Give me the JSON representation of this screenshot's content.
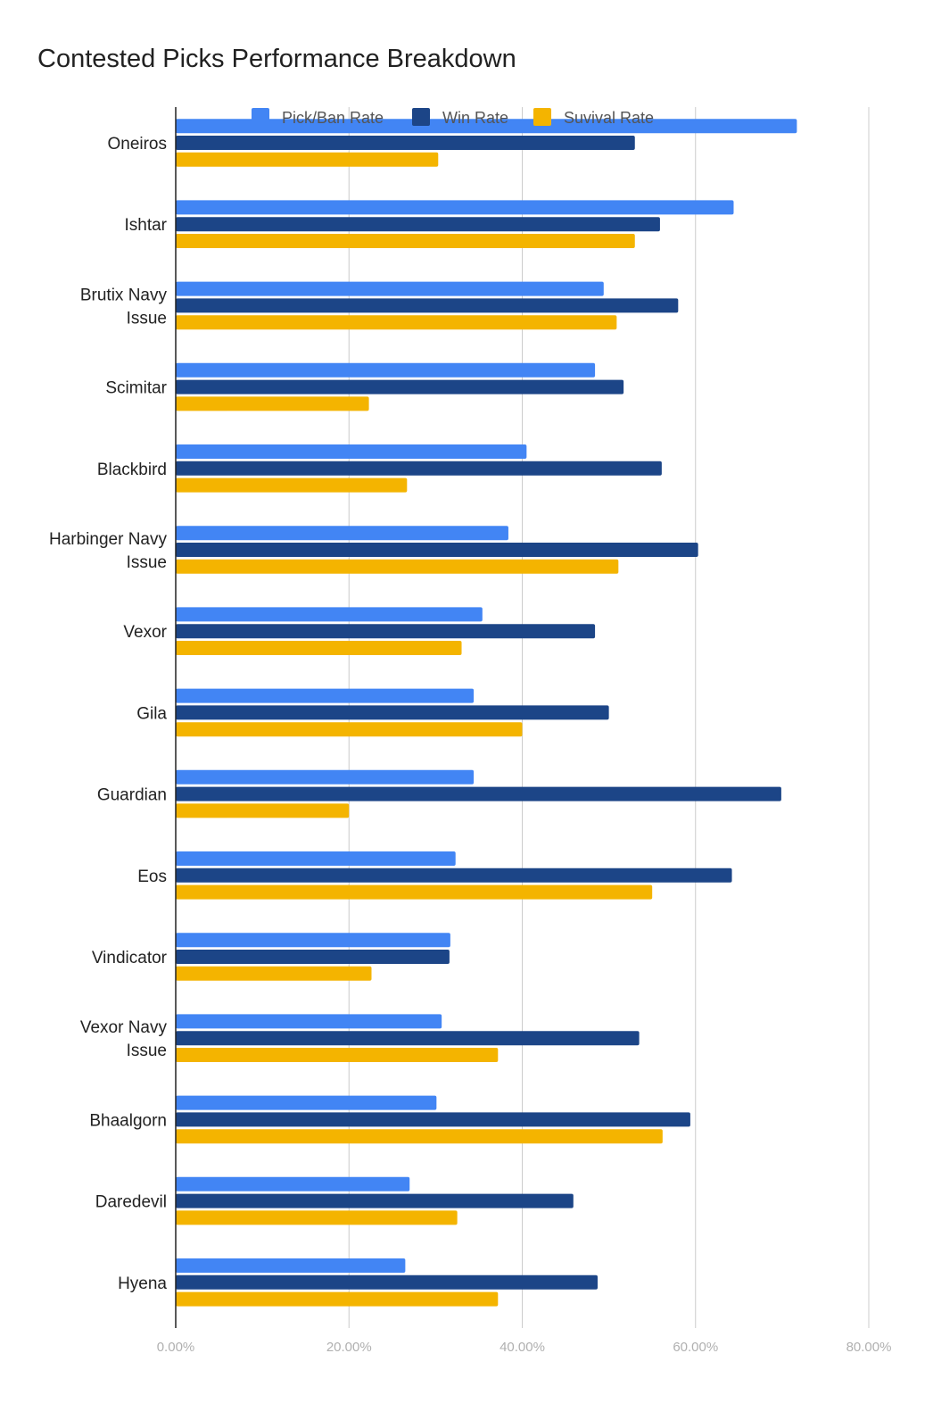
{
  "chart_data": {
    "type": "bar",
    "orientation": "horizontal",
    "title": "Contested Picks Performance Breakdown",
    "categories": [
      "Oneiros",
      "Ishtar",
      "Brutix Navy Issue",
      "Scimitar",
      "Blackbird",
      "Harbinger Navy Issue",
      "Vexor",
      "Gila",
      "Guardian",
      "Eos",
      "Vindicator",
      "Vexor Navy Issue",
      "Bhaalgorn",
      "Daredevil",
      "Hyena"
    ],
    "category_lines": [
      [
        "Oneiros"
      ],
      [
        "Ishtar"
      ],
      [
        "Brutix Navy",
        "Issue"
      ],
      [
        "Scimitar"
      ],
      [
        "Blackbird"
      ],
      [
        "Harbinger Navy",
        "Issue"
      ],
      [
        "Vexor"
      ],
      [
        "Gila"
      ],
      [
        "Guardian"
      ],
      [
        "Eos"
      ],
      [
        "Vindicator"
      ],
      [
        "Vexor Navy",
        "Issue"
      ],
      [
        "Bhaalgorn"
      ],
      [
        "Daredevil"
      ],
      [
        "Hyena"
      ]
    ],
    "series": [
      {
        "name": "Pick/Ban Rate",
        "color": "#4285f4",
        "values": [
          71.7,
          64.4,
          49.4,
          48.4,
          40.5,
          38.4,
          35.4,
          34.4,
          34.4,
          32.3,
          31.7,
          30.7,
          30.1,
          27.0,
          26.5
        ]
      },
      {
        "name": "Win Rate",
        "color": "#1c4587",
        "values": [
          53.0,
          55.9,
          58.0,
          51.7,
          56.1,
          60.3,
          48.4,
          50.0,
          69.9,
          64.2,
          31.6,
          53.5,
          59.4,
          45.9,
          48.7
        ]
      },
      {
        "name": "Suvival Rate",
        "color": "#f4b400",
        "values": [
          30.3,
          53.0,
          50.9,
          22.3,
          26.7,
          51.1,
          33.0,
          40.0,
          20.0,
          55.0,
          22.6,
          37.2,
          56.2,
          32.5,
          37.2
        ]
      }
    ],
    "xlim": [
      0,
      80
    ],
    "xticks": [
      "0.00%",
      "20.00%",
      "40.00%",
      "60.00%",
      "80.00%"
    ],
    "grid": true,
    "legend_position": "top"
  }
}
